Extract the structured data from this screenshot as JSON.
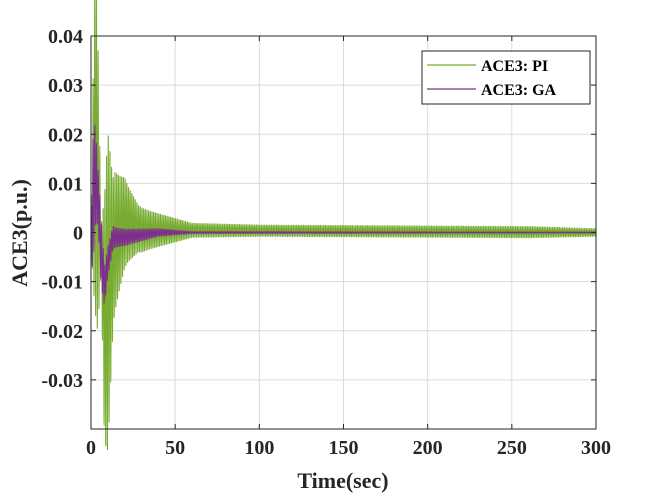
{
  "chart_data": {
    "type": "line",
    "title": "",
    "xlabel": "Time(sec)",
    "ylabel": "ACE3(p.u.)",
    "xlim": [
      0,
      300
    ],
    "ylim": [
      -0.04,
      0.04
    ],
    "x_ticks": [
      0,
      50,
      100,
      150,
      200,
      250,
      300
    ],
    "x_tick_labels": [
      "0",
      "50",
      "100",
      "150",
      "200",
      "250",
      "300"
    ],
    "y_ticks": [
      0.04,
      0.03,
      0.02,
      0.01,
      0,
      -0.01,
      -0.02,
      -0.03
    ],
    "y_tick_labels": [
      "0.04",
      "0.03",
      "0.02",
      "0.01",
      "0",
      "-0.01",
      "-0.02",
      "-0.03"
    ],
    "grid": true,
    "legend_position": "top-right",
    "series": [
      {
        "name": "ACE3: PI",
        "color": "#77ac30",
        "oscillation_period": 1.0,
        "envelope": [
          [
            0,
            0.0
          ],
          [
            1,
            0.018
          ],
          [
            2.5,
            0.038
          ],
          [
            4,
            0.032
          ],
          [
            6,
            0.005
          ],
          [
            8,
            0.026
          ],
          [
            10,
            0.034
          ],
          [
            13,
            0.016
          ],
          [
            17,
            0.012
          ],
          [
            22,
            0.008
          ],
          [
            28,
            0.005
          ],
          [
            35,
            0.004
          ],
          [
            45,
            0.003
          ],
          [
            60,
            0.0015
          ],
          [
            100,
            0.0012
          ],
          [
            200,
            0.0012
          ],
          [
            260,
            0.0012
          ],
          [
            300,
            0.0008
          ]
        ],
        "center": [
          [
            0,
            0.0
          ],
          [
            2.5,
            0.02
          ],
          [
            5,
            0.004
          ],
          [
            8,
            -0.018
          ],
          [
            10,
            -0.012
          ],
          [
            14,
            -0.002
          ],
          [
            20,
            0.002
          ],
          [
            30,
            0.0005
          ],
          [
            300,
            0.0
          ]
        ]
      },
      {
        "name": "ACE3: GA",
        "color": "#7e2f8e",
        "oscillation_period": 1.0,
        "envelope": [
          [
            0,
            0.0
          ],
          [
            1,
            0.014
          ],
          [
            2.5,
            0.011
          ],
          [
            4,
            0.006
          ],
          [
            6,
            0.007
          ],
          [
            8,
            0.004
          ],
          [
            10,
            0.003
          ],
          [
            15,
            0.002
          ],
          [
            25,
            0.0015
          ],
          [
            40,
            0.0008
          ],
          [
            60,
            0.0002
          ],
          [
            300,
            0.0001
          ]
        ],
        "center": [
          [
            0,
            0.0
          ],
          [
            2.5,
            0.012
          ],
          [
            4.5,
            0.006
          ],
          [
            6,
            -0.004
          ],
          [
            8,
            -0.011
          ],
          [
            10,
            -0.006
          ],
          [
            13,
            -0.001
          ],
          [
            20,
            -0.001
          ],
          [
            40,
            0.0
          ],
          [
            300,
            0.0
          ]
        ]
      }
    ]
  }
}
